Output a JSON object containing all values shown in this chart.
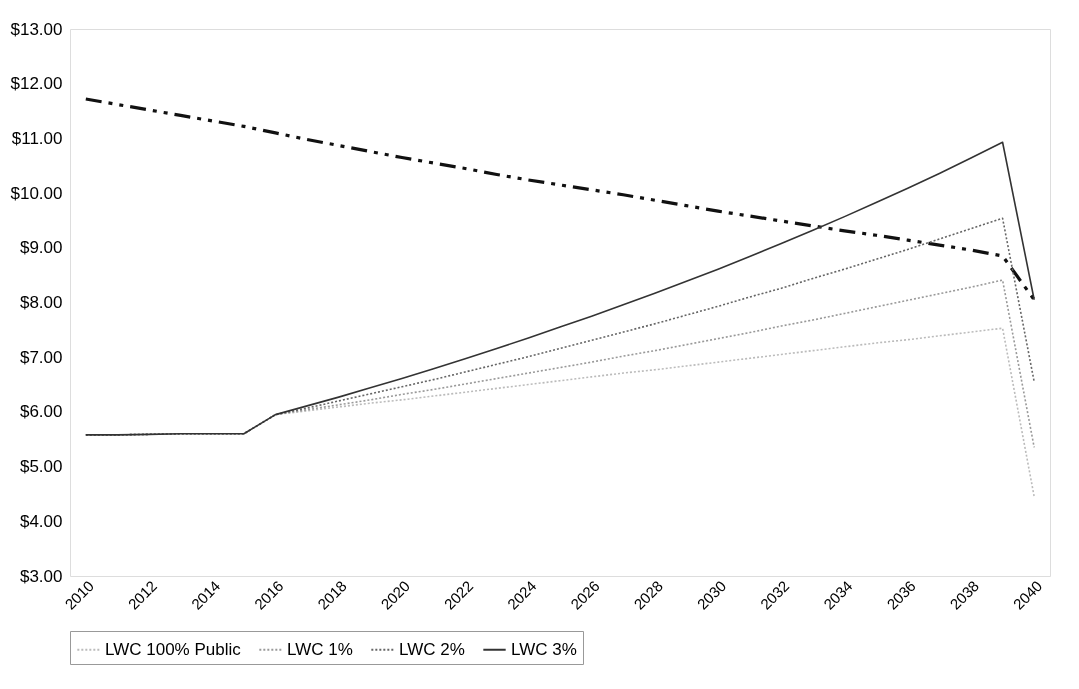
{
  "chart_data": {
    "type": "line",
    "x": [
      2010,
      2011,
      2012,
      2013,
      2014,
      2015,
      2016,
      2017,
      2018,
      2019,
      2020,
      2021,
      2022,
      2023,
      2024,
      2025,
      2026,
      2027,
      2028,
      2029,
      2030,
      2031,
      2032,
      2033,
      2034,
      2035,
      2036,
      2037,
      2038,
      2039,
      2040
    ],
    "xlim": [
      2009.5,
      2040.5
    ],
    "xticks": [
      2010,
      2012,
      2014,
      2016,
      2018,
      2020,
      2022,
      2024,
      2026,
      2028,
      2030,
      2032,
      2034,
      2036,
      2038,
      2040
    ],
    "ylim": [
      3,
      13
    ],
    "yticks": [
      {
        "value": 3,
        "label": "$3.00"
      },
      {
        "value": 4,
        "label": "$4.00"
      },
      {
        "value": 5,
        "label": "$5.00"
      },
      {
        "value": 6,
        "label": "$6.00"
      },
      {
        "value": 7,
        "label": "$7.00"
      },
      {
        "value": 8,
        "label": "$8.00"
      },
      {
        "value": 9,
        "label": "$9.00"
      },
      {
        "value": 10,
        "label": "$10.00"
      },
      {
        "value": 11,
        "label": "$11.00"
      },
      {
        "value": 12,
        "label": "$12.00"
      },
      {
        "value": 13,
        "label": "$13.00"
      }
    ],
    "grid": false,
    "legend": "bottom",
    "marker": "none",
    "series": [
      {
        "name": null,
        "color": "#111111",
        "line_style": "dashed",
        "values": [
          11.72,
          11.62,
          11.52,
          11.42,
          11.32,
          11.22,
          11.1,
          10.98,
          10.87,
          10.76,
          10.65,
          10.55,
          10.45,
          10.34,
          10.24,
          10.15,
          10.06,
          9.97,
          9.87,
          9.77,
          9.67,
          9.58,
          9.49,
          9.4,
          9.31,
          9.23,
          9.14,
          9.05,
          8.96,
          8.85,
          8.05
        ]
      },
      {
        "name": "LWC 100% Public",
        "color": "#bbbbbb",
        "line_style": "dotted",
        "values": [
          5.58,
          5.58,
          5.59,
          5.6,
          5.6,
          5.6,
          5.95,
          6.02,
          6.09,
          6.16,
          6.22,
          6.29,
          6.36,
          6.43,
          6.5,
          6.57,
          6.64,
          6.71,
          6.77,
          6.84,
          6.91,
          6.98,
          7.05,
          7.12,
          7.19,
          7.26,
          7.32,
          7.39,
          7.46,
          7.53,
          4.45
        ]
      },
      {
        "name": "LWC 1%",
        "color": "#999999",
        "line_style": "dotted",
        "values": [
          5.58,
          5.58,
          5.59,
          5.6,
          5.6,
          5.6,
          5.95,
          6.04,
          6.13,
          6.22,
          6.32,
          6.41,
          6.51,
          6.61,
          6.71,
          6.81,
          6.91,
          7.02,
          7.12,
          7.23,
          7.34,
          7.45,
          7.57,
          7.68,
          7.8,
          7.92,
          8.04,
          8.16,
          8.28,
          8.41,
          5.35
        ]
      },
      {
        "name": "LWC 2%",
        "color": "#666666",
        "line_style": "dotted",
        "values": [
          5.58,
          5.58,
          5.59,
          5.6,
          5.6,
          5.6,
          5.95,
          6.07,
          6.2,
          6.33,
          6.46,
          6.59,
          6.73,
          6.87,
          7.01,
          7.16,
          7.31,
          7.46,
          7.61,
          7.77,
          7.93,
          8.1,
          8.26,
          8.44,
          8.61,
          8.79,
          8.97,
          9.16,
          9.35,
          9.54,
          6.55
        ]
      },
      {
        "name": "LWC 3%",
        "color": "#333333",
        "line_style": "solid",
        "values": [
          5.58,
          5.58,
          5.59,
          5.6,
          5.6,
          5.6,
          5.95,
          6.11,
          6.27,
          6.44,
          6.61,
          6.79,
          6.97,
          7.16,
          7.35,
          7.55,
          7.75,
          7.96,
          8.17,
          8.39,
          8.61,
          8.84,
          9.08,
          9.32,
          9.57,
          9.83,
          10.09,
          10.36,
          10.64,
          10.93,
          8.05
        ]
      }
    ]
  }
}
